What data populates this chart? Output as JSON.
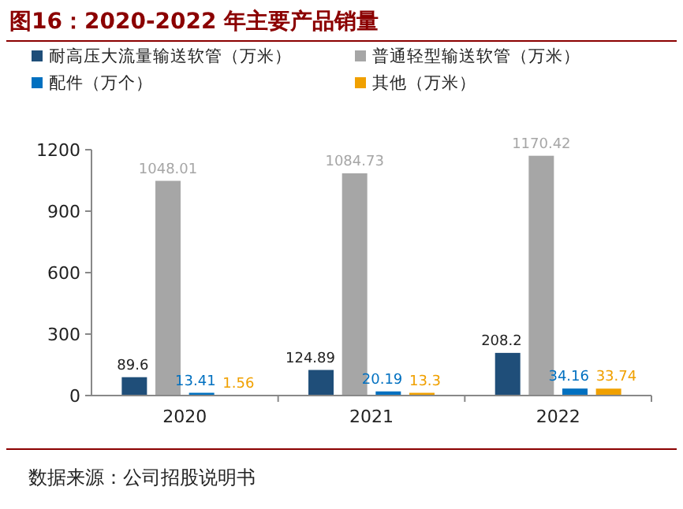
{
  "chart_data": {
    "type": "bar",
    "title": "图16：2020-2022 年主要产品销量",
    "categories": [
      "2020",
      "2021",
      "2022"
    ],
    "series": [
      {
        "name": "耐高压大流量输送软管（万米）",
        "color": "#1f4e79",
        "values": [
          89.6,
          124.89,
          208.2
        ]
      },
      {
        "name": "普通轻型输送软管（万米）",
        "color": "#a6a6a6",
        "values": [
          1048.01,
          1084.73,
          1170.42
        ]
      },
      {
        "name": "配件（万个）",
        "color": "#0070c0",
        "values": [
          13.41,
          20.19,
          34.16
        ]
      },
      {
        "name": "其他（万米）",
        "color": "#f0a000",
        "values": [
          1.56,
          13.3,
          33.74
        ]
      }
    ],
    "ylim": [
      0,
      1200
    ],
    "yticks": [
      0,
      300,
      600,
      900,
      1200
    ],
    "grid": false,
    "legend": "top",
    "data_labels": true,
    "annotations": [
      "数据来源：公司招股说明书"
    ]
  }
}
